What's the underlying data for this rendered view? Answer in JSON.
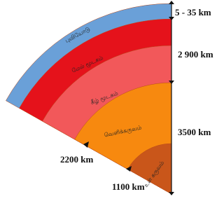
{
  "layers": [
    {
      "label": "புவியோடு"
    },
    {
      "label": "மேல் மூடகம்"
    },
    {
      "label": "கீழ் மூடகம்"
    },
    {
      "label": "வெளிக்கருவம்"
    },
    {
      "label": "உள் கருவம்"
    }
  ],
  "depths": {
    "right": [
      "5 - 35 km",
      "2 900 km",
      "3500 km"
    ],
    "left": [
      "2200 km",
      "1100 km"
    ]
  }
}
